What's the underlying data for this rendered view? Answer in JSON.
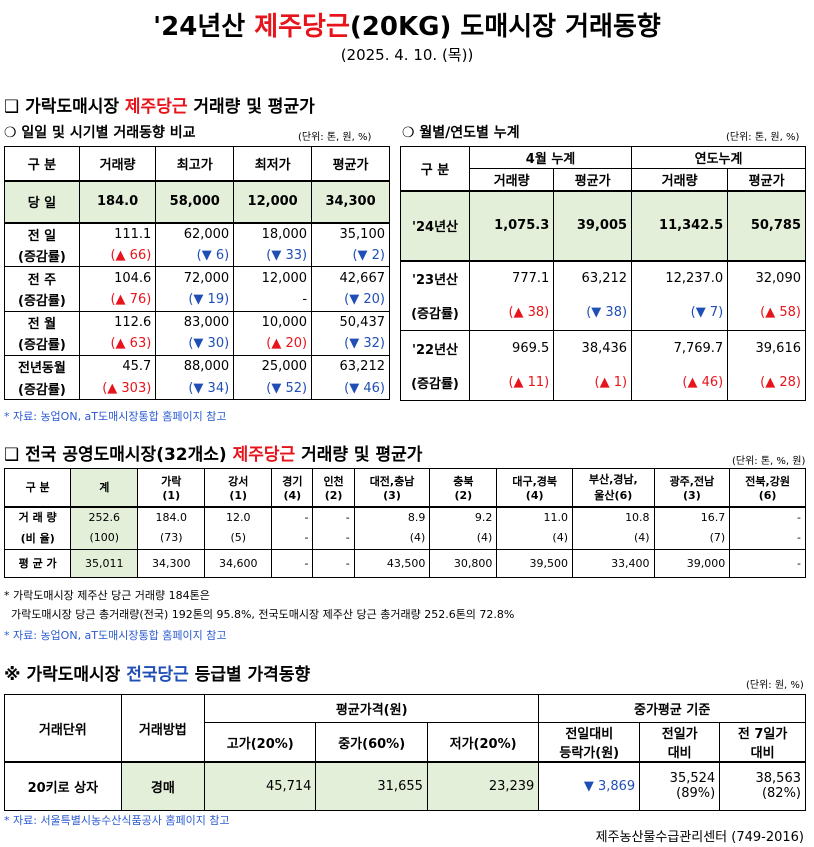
{
  "header": {
    "title_pre": "'24년산 ",
    "title_red": "제주당근",
    "title_post": "(20KG) 도매시장 거래동향",
    "date": "(2025. 4. 10. (목))"
  },
  "sec1": {
    "pre": "❑ 가락도매시장 ",
    "red": "제주당근",
    "post": " 거래량 및 평균가"
  },
  "daily": {
    "title": "❍ 일일 및 시기별 거래동향 비교",
    "unit": "(단위: 톤, 원, %)",
    "headers": [
      "구  분",
      "거래량",
      "최고가",
      "최저가",
      "평균가"
    ],
    "today": {
      "label": "당  일",
      "vals": [
        "184.0",
        "58,000",
        "12,000",
        "34,300"
      ]
    },
    "rows": [
      {
        "l1": "전  일",
        "l2": "(증감률)",
        "vals": [
          "111.1",
          "62,000",
          "18,000",
          "35,100"
        ],
        "chg": [
          "(▲ 66)",
          "(▼ 6)",
          "(▼ 33)",
          "(▼ 2)"
        ],
        "dir": [
          "up",
          "dn",
          "dn",
          "dn"
        ]
      },
      {
        "l1": "전  주",
        "l2": "(증감률)",
        "vals": [
          "104.6",
          "72,000",
          "12,000",
          "42,667"
        ],
        "chg": [
          "(▲ 76)",
          "(▼ 19)",
          "-",
          "(▼ 20)"
        ],
        "dir": [
          "up",
          "dn",
          "",
          "dn"
        ]
      },
      {
        "l1": "전  월",
        "l2": "(증감률)",
        "vals": [
          "112.6",
          "83,000",
          "10,000",
          "50,437"
        ],
        "chg": [
          "(▲ 63)",
          "(▼ 30)",
          "(▲ 20)",
          "(▼ 32)"
        ],
        "dir": [
          "up",
          "dn",
          "up",
          "dn"
        ]
      },
      {
        "l1": "전년동월",
        "l2": "(증감률)",
        "vals": [
          "45.7",
          "88,000",
          "25,000",
          "63,212"
        ],
        "chg": [
          "(▲ 303)",
          "(▼ 34)",
          "(▼ 52)",
          "(▼ 46)"
        ],
        "dir": [
          "up",
          "dn",
          "dn",
          "dn"
        ]
      }
    ]
  },
  "monthly": {
    "title": "❍ 월별/연도별 누계",
    "unit": "(단위: 톤, 원, %)",
    "h_label": "구  분",
    "h_month": "4월 누계",
    "h_year": "연도누계",
    "sub": [
      "거래량",
      "평균가",
      "거래량",
      "평균가"
    ],
    "y24": {
      "label": "'24년산",
      "vals": [
        "1,075.3",
        "39,005",
        "11,342.5",
        "50,785"
      ]
    },
    "y23": {
      "label": "'23년산",
      "l2": "(증감률)",
      "vals": [
        "777.1",
        "63,212",
        "12,237.0",
        "32,090"
      ],
      "chg": [
        "(▲ 38)",
        "(▼ 38)",
        "(▼ 7)",
        "(▲ 58)"
      ],
      "dir": [
        "up",
        "dn",
        "dn",
        "up"
      ]
    },
    "y22": {
      "label": "'22년산",
      "l2": "(증감률)",
      "vals": [
        "969.5",
        "38,436",
        "7,769.7",
        "39,616"
      ],
      "chg": [
        "(▲ 11)",
        "(▲ 1)",
        "(▲ 46)",
        "(▲ 28)"
      ],
      "dir": [
        "up",
        "up",
        "up",
        "up"
      ]
    }
  },
  "note1": "* 자료: 농업ON, aT도매시장통합 홈페이지 참고",
  "sec2": {
    "pre": "❑ 전국 공영도매시장(32개소) ",
    "red": "제주당근",
    "post": " 거래량 및 평균가",
    "unit": "(단위: 톤, %, 원)"
  },
  "national": {
    "h0": "구  분",
    "h1": "계",
    "markets": [
      [
        "가락",
        "(1)"
      ],
      [
        "강서",
        "(1)"
      ],
      [
        "경기",
        "(4)"
      ],
      [
        "인천",
        "(2)"
      ],
      [
        "대전,충남",
        "(3)"
      ],
      [
        "충북",
        "(2)"
      ],
      [
        "대구,경북",
        "(4)"
      ],
      [
        "부산,경남,",
        "울산(6)"
      ],
      [
        "광주,전남",
        "(3)"
      ],
      [
        "전북,강원",
        "(6)"
      ]
    ],
    "vol_label": "거 래 량",
    "vol": [
      "252.6",
      "184.0",
      "12.0",
      "-",
      "-",
      "8.9",
      "9.2",
      "11.0",
      "10.8",
      "16.7",
      "-"
    ],
    "ratio_label": "(비 율)",
    "ratio": [
      "(100)",
      "(73)",
      "(5)",
      "-",
      "-",
      "(4)",
      "(4)",
      "(4)",
      "(4)",
      "(7)",
      "-"
    ],
    "avg_label": "평 균 가",
    "avg": [
      "35,011",
      "34,300",
      "34,600",
      "-",
      "-",
      "43,500",
      "30,800",
      "39,500",
      "33,400",
      "39,000",
      "-"
    ]
  },
  "note2a": "* 가락도매시장 제주산 당근 거래량 184톤은",
  "note2b": "  가락도매시장 당근 총거래량(전국) 192톤의 95.8%, 전국도매시장 제주산 당근 총거래량 252.6톤의 72.8%",
  "note2c": "* 자료: 농업ON, aT도매시장통합 홈페이지 참고",
  "sec3": {
    "pre": "※ 가락도매시장 ",
    "blue": "전국당근",
    "post": " 등급별 가격동향",
    "unit": "(단위: 원, %)"
  },
  "grade": {
    "h_unit": "거래단위",
    "h_method": "거래방법",
    "h_avg": "평균가격(원)",
    "h_mid": "중가평균 기준",
    "sub": [
      "고가(20%)",
      "중가(60%)",
      "저가(20%)"
    ],
    "sub2": [
      [
        "전일대비",
        "등락가(원)"
      ],
      [
        "전일가",
        "대비"
      ],
      [
        "전 7일가",
        "대비"
      ]
    ],
    "row": {
      "unit": "20키로 상자",
      "method": "경매",
      "hi": "45,714",
      "mid": "31,655",
      "lo": "23,239",
      "diff": "▼ 3,869",
      "prev": "35,524",
      "prev_pct": "(89%)",
      "wk": "38,563",
      "wk_pct": "(82%)"
    }
  },
  "note3": "* 자료: 서울특별시농수산식품공사 홈페이지 참고",
  "footer": "제주농산물수급관리센터 (749-2016)"
}
